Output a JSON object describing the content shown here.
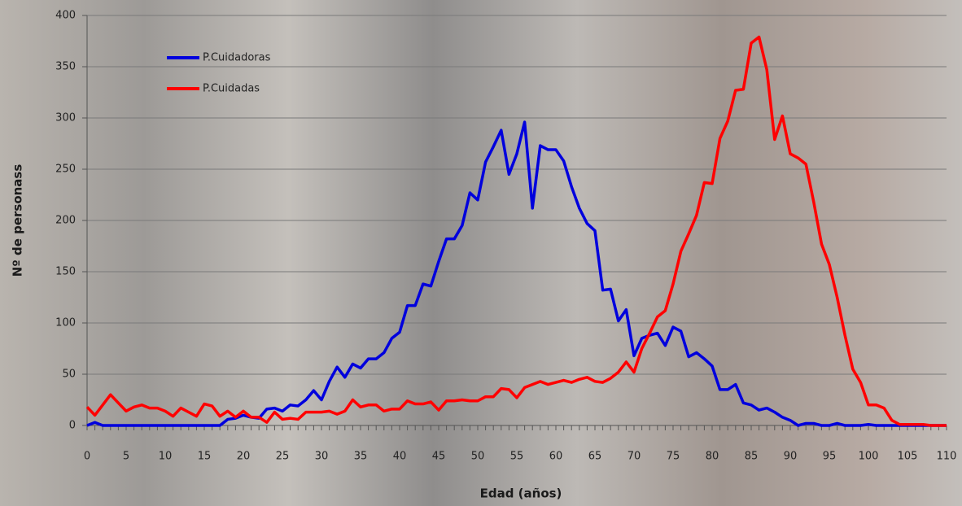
{
  "chart_data": {
    "type": "line",
    "x_label": "Edad  (años)",
    "y_label": "Nº de personass",
    "x": [
      0,
      1,
      2,
      3,
      4,
      5,
      6,
      7,
      8,
      9,
      10,
      11,
      12,
      13,
      14,
      15,
      16,
      17,
      18,
      19,
      20,
      21,
      22,
      23,
      24,
      25,
      26,
      27,
      28,
      29,
      30,
      31,
      32,
      33,
      34,
      35,
      36,
      37,
      38,
      39,
      40,
      41,
      42,
      43,
      44,
      45,
      46,
      47,
      48,
      49,
      50,
      51,
      52,
      53,
      54,
      55,
      56,
      57,
      58,
      59,
      60,
      61,
      62,
      63,
      64,
      65,
      66,
      67,
      68,
      69,
      70,
      71,
      72,
      73,
      74,
      75,
      76,
      77,
      78,
      79,
      80,
      81,
      82,
      83,
      84,
      85,
      86,
      87,
      88,
      89,
      90,
      91,
      92,
      93,
      94,
      95,
      96,
      97,
      98,
      99,
      100,
      101,
      102,
      103,
      104,
      105,
      106,
      107,
      108,
      109,
      110
    ],
    "series": [
      {
        "name": "P.Cuidadoras",
        "color": "#0000dd",
        "values": [
          0,
          3,
          0,
          0,
          0,
          0,
          0,
          0,
          0,
          0,
          0,
          0,
          0,
          0,
          0,
          0,
          0,
          0,
          6,
          7,
          10,
          8,
          7,
          16,
          17,
          14,
          20,
          19,
          25,
          34,
          25,
          43,
          57,
          47,
          60,
          56,
          65,
          65,
          71,
          85,
          91,
          117,
          117,
          138,
          136,
          160,
          182,
          182,
          195,
          227,
          220,
          257,
          272,
          288,
          245,
          265,
          296,
          212,
          273,
          269,
          269,
          258,
          233,
          212,
          197,
          190,
          132,
          133,
          102,
          113,
          68,
          85,
          88,
          90,
          78,
          96,
          92,
          67,
          71,
          65,
          58,
          35,
          35,
          40,
          22,
          20,
          15,
          17,
          13,
          8,
          5,
          0,
          2,
          2,
          0,
          0,
          2,
          0,
          0,
          0,
          1,
          0,
          0,
          0,
          0,
          0,
          0,
          0,
          0,
          0,
          0
        ]
      },
      {
        "name": "P.Cuidadas",
        "color": "#ff0000",
        "values": [
          18,
          10,
          20,
          30,
          22,
          14,
          18,
          20,
          17,
          17,
          14,
          9,
          17,
          13,
          9,
          21,
          19,
          9,
          14,
          8,
          14,
          8,
          8,
          3,
          13,
          6,
          7,
          6,
          13,
          13,
          13,
          14,
          11,
          14,
          25,
          18,
          20,
          20,
          14,
          16,
          16,
          24,
          21,
          21,
          23,
          15,
          24,
          24,
          25,
          24,
          24,
          28,
          28,
          36,
          35,
          27,
          37,
          40,
          43,
          40,
          42,
          44,
          42,
          45,
          47,
          43,
          42,
          46,
          52,
          62,
          52,
          75,
          90,
          106,
          112,
          138,
          170,
          187,
          205,
          237,
          236,
          280,
          297,
          327,
          328,
          373,
          379,
          347,
          279,
          302,
          265,
          261,
          255,
          218,
          177,
          157,
          125,
          88,
          55,
          42,
          20,
          20,
          17,
          5,
          1,
          1,
          1,
          1,
          0,
          0,
          0
        ]
      }
    ],
    "xlim": [
      0,
      110
    ],
    "xticks": [
      0,
      5,
      10,
      15,
      20,
      25,
      30,
      35,
      40,
      45,
      50,
      55,
      60,
      65,
      70,
      75,
      80,
      85,
      90,
      95,
      100,
      105,
      110
    ],
    "ylim": [
      0,
      400
    ],
    "yticks": [
      0,
      50,
      100,
      150,
      200,
      250,
      300,
      350,
      400
    ],
    "grid": true
  }
}
